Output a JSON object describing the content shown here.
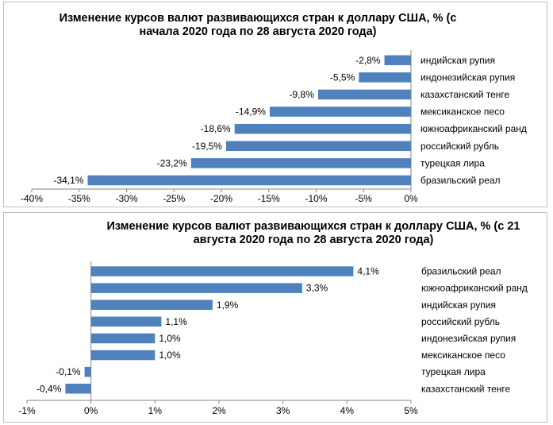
{
  "chart_data": [
    {
      "type": "bar",
      "orientation": "horizontal",
      "title": "Изменение курсов валют развивающихся стран к доллару США, % (с начала 2020 года по 28 августа 2020 года)",
      "categories": [
        "индийская рупия",
        "индонезийская рупия",
        "казахстанский тенге",
        "мексиканское песо",
        "южноафриканский ранд",
        "российский рубль",
        "турецкая лира",
        "бразильский реал"
      ],
      "values": [
        -2.8,
        -5.5,
        -9.8,
        -14.9,
        -18.6,
        -19.5,
        -23.2,
        -34.1
      ],
      "data_labels": [
        "-2,8%",
        "-5,5%",
        "-9,8%",
        "-14,9%",
        "-18,6%",
        "-19,5%",
        "-23,2%",
        "-34,1%"
      ],
      "xlim": [
        -40,
        0
      ],
      "xticks": [
        -40,
        -35,
        -30,
        -25,
        -20,
        -15,
        -10,
        -5,
        0
      ],
      "xtick_labels": [
        "-40%",
        "-35%",
        "-30%",
        "-25%",
        "-20%",
        "-15%",
        "-10%",
        "-5%",
        "0%"
      ],
      "bar_color": "#4f81bd",
      "grid": false,
      "legend": "none"
    },
    {
      "type": "bar",
      "orientation": "horizontal",
      "title": "Изменение курсов валют развивающихся стран к доллару США, % (с 21 августа 2020 года по 28 августа 2020 года)",
      "categories": [
        "бразильский реал",
        "южноафриканский ранд",
        "индийская рупия",
        "российский рубль",
        "индонезийская рупия",
        "мексиканское песо",
        "турецкая лира",
        "казахстанский тенге"
      ],
      "values": [
        4.1,
        3.3,
        1.9,
        1.1,
        1.0,
        1.0,
        -0.1,
        -0.4
      ],
      "data_labels": [
        "4,1%",
        "3,3%",
        "1,9%",
        "1,1%",
        "1,0%",
        "1,0%",
        "-0,1%",
        "-0,4%"
      ],
      "xlim": [
        -1,
        5
      ],
      "xticks": [
        -1,
        0,
        1,
        2,
        3,
        4,
        5
      ],
      "xtick_labels": [
        "-1%",
        "0%",
        "1%",
        "2%",
        "3%",
        "4%",
        "5%"
      ],
      "bar_color": "#4f81bd",
      "grid": false,
      "legend": "none"
    }
  ]
}
